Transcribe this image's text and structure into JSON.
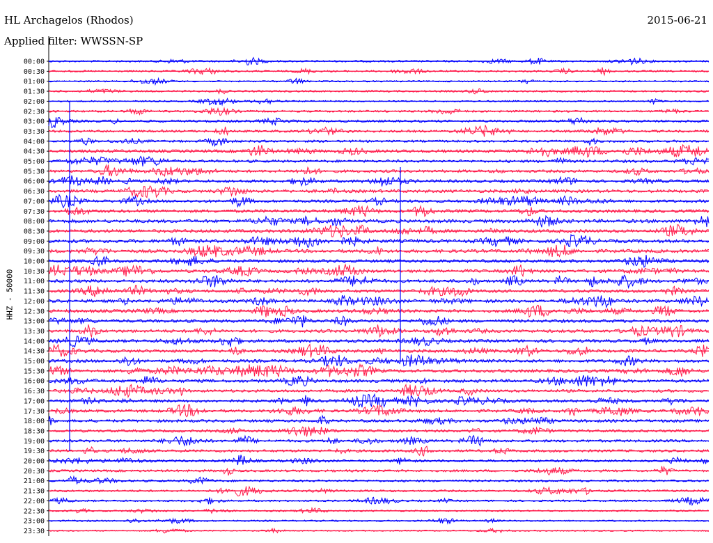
{
  "header": {
    "station": "HL Archagelos (Rhodos)",
    "date": "2015-06-21",
    "filter": "Applied filter: WWSSN-SP"
  },
  "chart_data": {
    "type": "line",
    "title": "HL Archagelos (Rhodos)",
    "subtitle": "Applied filter: WWSSN-SP",
    "ylabel": "HHZ - 50000",
    "xlabel": "",
    "row_labels": [
      "00:00",
      "00:30",
      "01:00",
      "01:30",
      "02:00",
      "02:30",
      "03:00",
      "03:30",
      "04:00",
      "04:30",
      "05:00",
      "05:30",
      "06:00",
      "06:30",
      "07:00",
      "07:30",
      "08:00",
      "08:30",
      "09:00",
      "09:30",
      "10:00",
      "10:30",
      "11:00",
      "11:30",
      "12:00",
      "12:30",
      "13:00",
      "13:30",
      "14:00",
      "14:30",
      "15:00",
      "15:30",
      "16:00",
      "16:30",
      "17:00",
      "17:30",
      "18:00",
      "18:30",
      "19:00",
      "19:30",
      "20:00",
      "20:30",
      "21:00",
      "21:30",
      "22:00",
      "22:30",
      "23:00",
      "23:30"
    ],
    "series_colors": [
      "#0000ff",
      "#ff1a4a"
    ],
    "activity_level": [
      0.4,
      0.4,
      0.3,
      0.4,
      0.3,
      0.5,
      0.6,
      0.6,
      0.6,
      0.9,
      0.7,
      0.8,
      0.8,
      0.9,
      0.8,
      0.9,
      1.0,
      1.0,
      1.0,
      1.0,
      0.9,
      0.9,
      0.9,
      0.9,
      0.9,
      0.9,
      0.9,
      0.9,
      0.9,
      0.9,
      0.9,
      0.9,
      0.9,
      0.8,
      0.8,
      0.8,
      0.8,
      0.7,
      0.7,
      0.7,
      0.6,
      0.6,
      0.5,
      0.5,
      0.4,
      0.3,
      0.3,
      0.2
    ],
    "grid": false,
    "legend": "none"
  }
}
